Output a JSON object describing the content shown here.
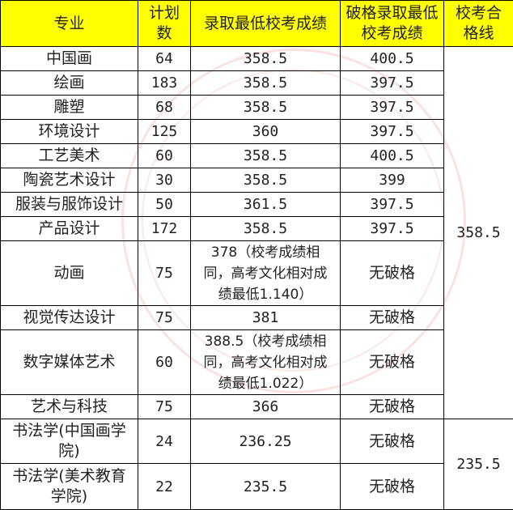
{
  "headers": [
    "专业",
    "计划数",
    "录取最低校考成绩",
    "破格录取最低校考成绩",
    "校考合格线"
  ],
  "rows": [
    {
      "major": "中国画",
      "plan": "64",
      "min": "358.5",
      "exception": "400.5"
    },
    {
      "major": "绘画",
      "plan": "183",
      "min": "358.5",
      "exception": "397.5"
    },
    {
      "major": "雕塑",
      "plan": "68",
      "min": "358.5",
      "exception": "397.5"
    },
    {
      "major": "环境设计",
      "plan": "125",
      "min": "360",
      "exception": "397.5"
    },
    {
      "major": "工艺美术",
      "plan": "60",
      "min": "358.5",
      "exception": "400.5"
    },
    {
      "major": "陶瓷艺术设计",
      "plan": "30",
      "min": "358.5",
      "exception": "399"
    },
    {
      "major": "服装与服饰设计",
      "plan": "50",
      "min": "361.5",
      "exception": "397.5"
    },
    {
      "major": "产品设计",
      "plan": "172",
      "min": "358.5",
      "exception": "397.5"
    },
    {
      "major": "动画",
      "plan": "75",
      "min": "378（校考成绩相同，高考文化相对成绩最低1.140）",
      "exception": "无破格"
    },
    {
      "major": "视觉传达设计",
      "plan": "75",
      "min": "381",
      "exception": "无破格"
    },
    {
      "major": "数字媒体艺术",
      "plan": "60",
      "min": "388.5（校考成绩相同，高考文化相对成绩最低1.022）",
      "exception": "无破格"
    },
    {
      "major": "艺术与科技",
      "plan": "75",
      "min": "366",
      "exception": "无破格"
    },
    {
      "major": "书法学(中国画学院)",
      "plan": "24",
      "min": "236.25",
      "exception": "无破格"
    },
    {
      "major": "书法学(美术教育学院)",
      "plan": "22",
      "min": "235.5",
      "exception": "无破格"
    }
  ],
  "pass_lines": [
    "358.5",
    "235.5"
  ],
  "colors": {
    "header_bg": "#ffff00"
  }
}
